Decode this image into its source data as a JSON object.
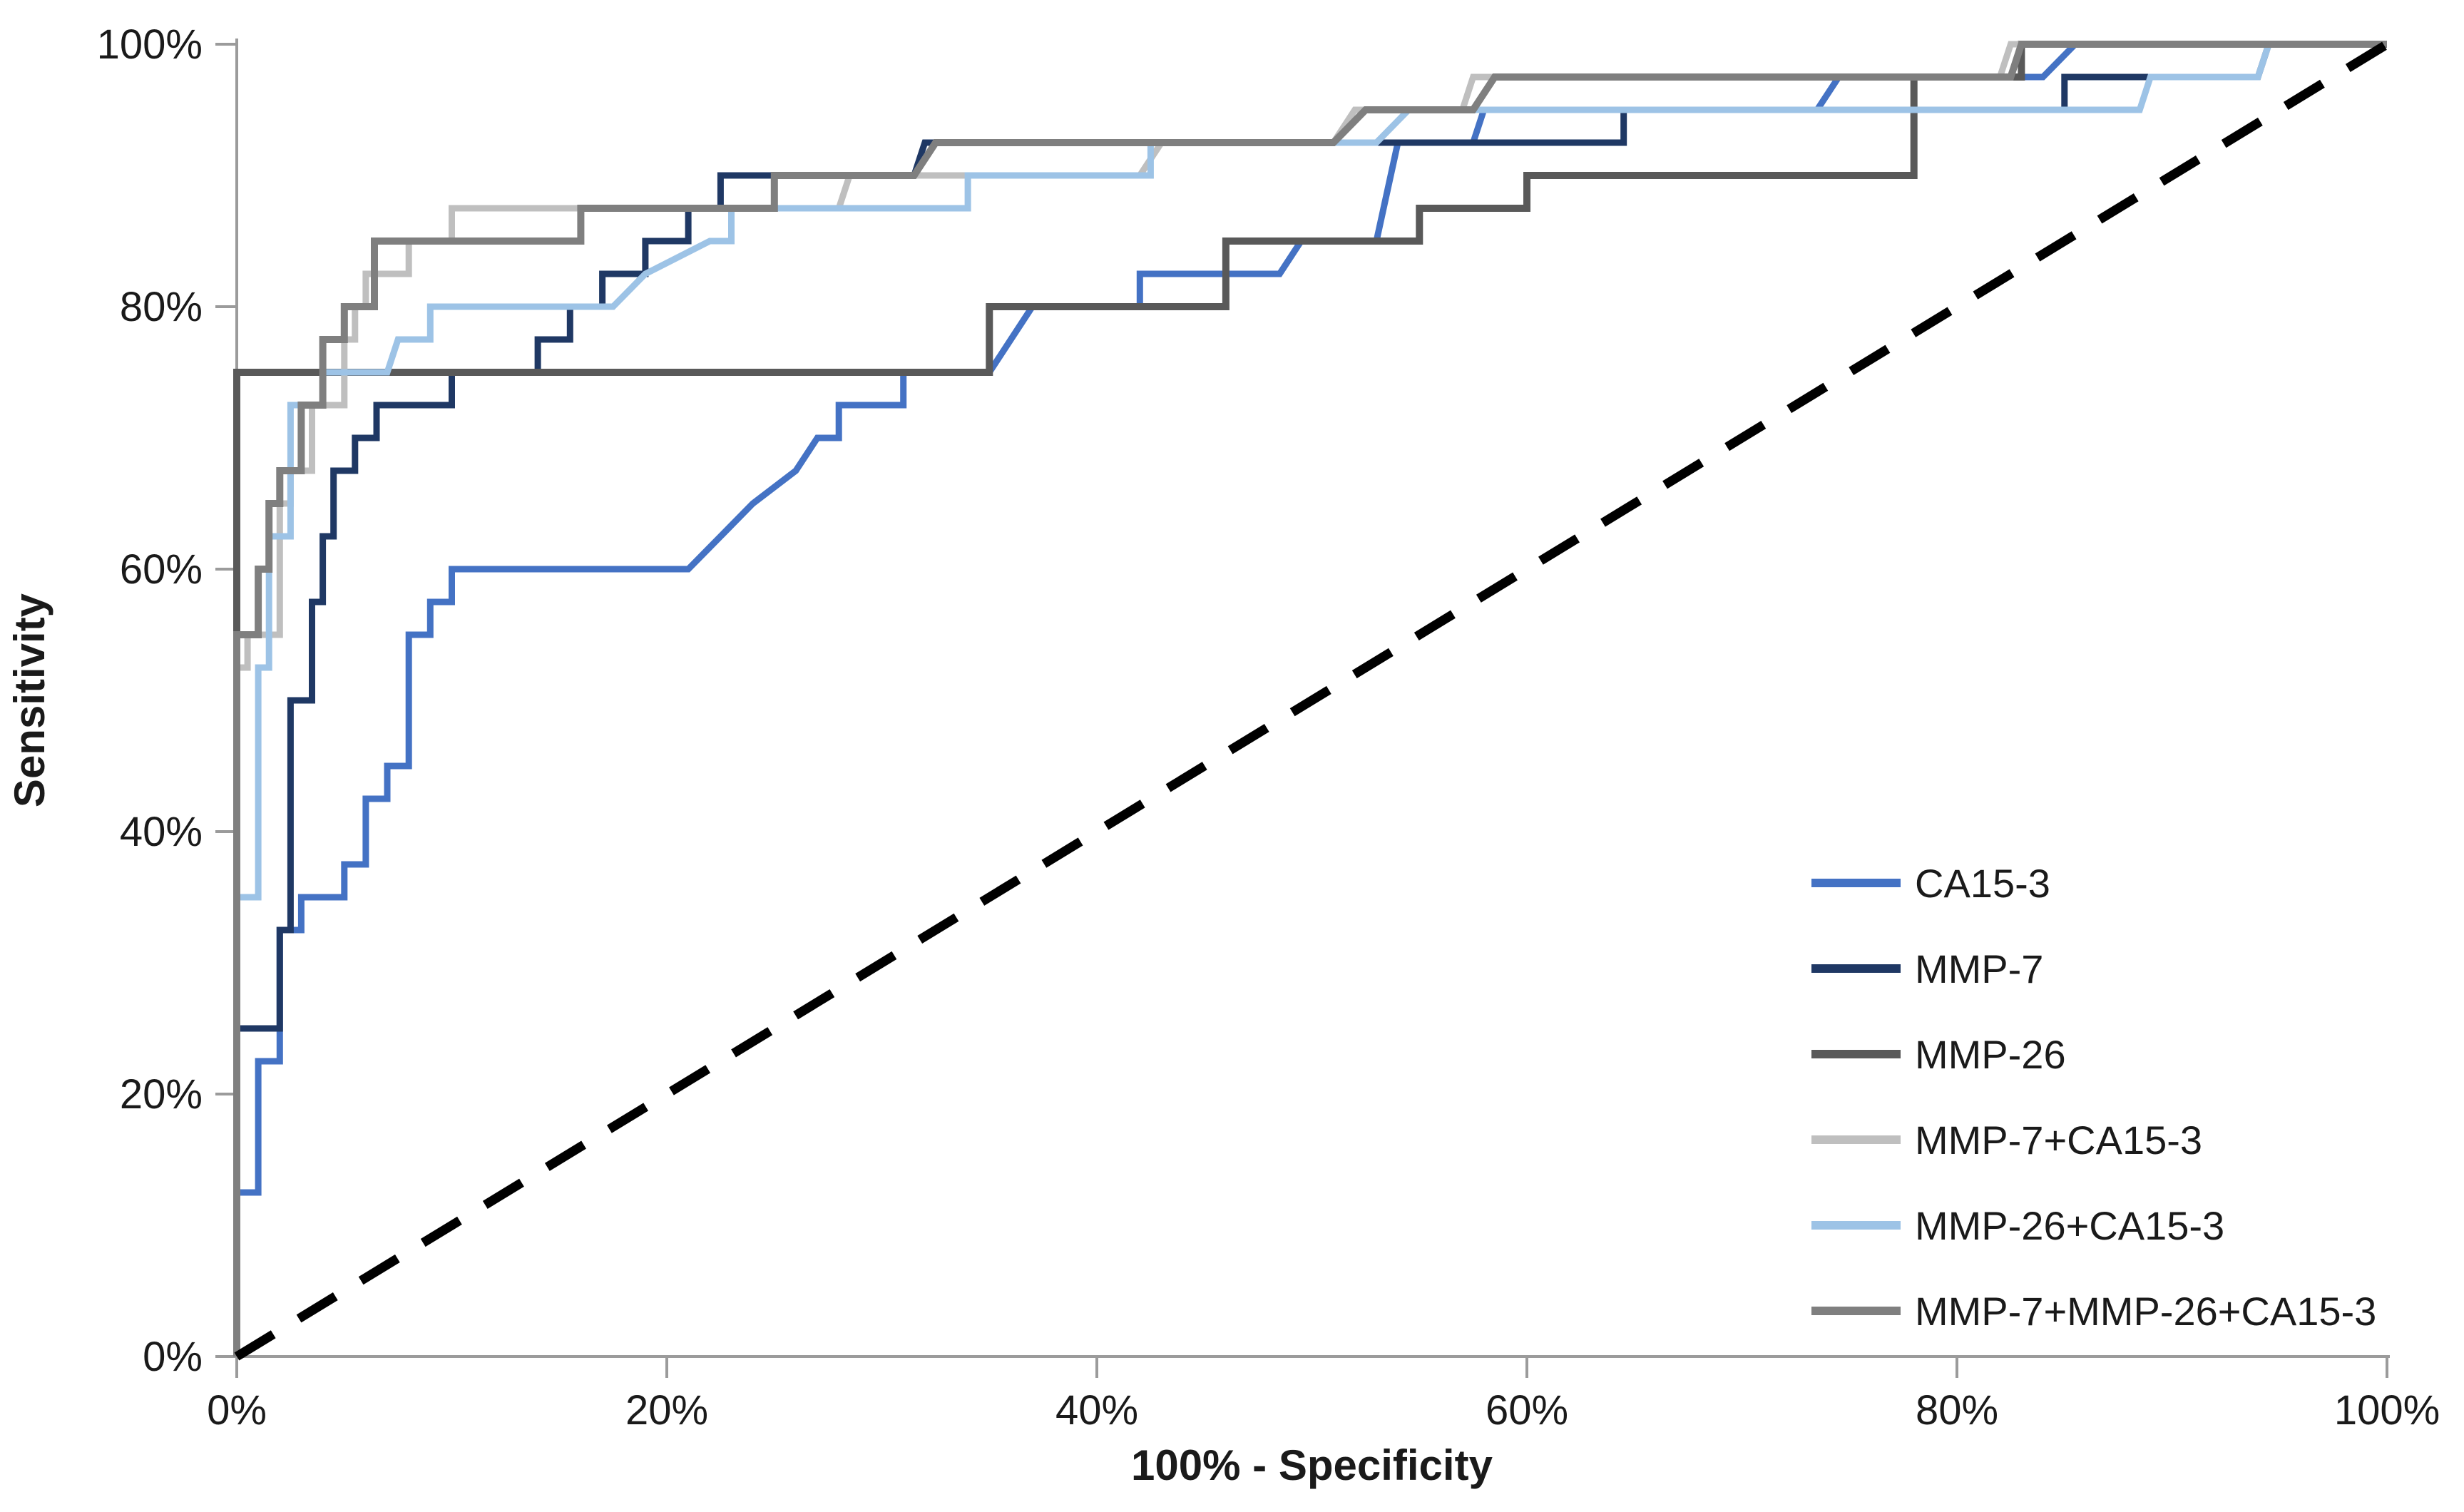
{
  "chart_data": {
    "type": "line",
    "subtype": "roc-step-curves",
    "title": "",
    "xlabel": "100% - Specificity",
    "ylabel": "Sensitivity",
    "xlim": [
      0,
      100
    ],
    "ylim": [
      0,
      100
    ],
    "x_tick_labels": [
      "0%",
      "20%",
      "40%",
      "60%",
      "80%",
      "100%"
    ],
    "y_tick_labels": [
      "0%",
      "20%",
      "40%",
      "60%",
      "80%",
      "100%"
    ],
    "x_tick_values": [
      0,
      20,
      40,
      60,
      80,
      100
    ],
    "y_tick_values": [
      0,
      20,
      40,
      60,
      80,
      100
    ],
    "grid": false,
    "legend_position": "lower-right-inside",
    "background_color": "#ffffff",
    "axis_color": "#9b9b9b",
    "text_color": "#1a1a1a",
    "series": [
      {
        "name": "CA15-3",
        "color": "#4472C4",
        "stroke_width": 9,
        "points": [
          [
            0,
            0
          ],
          [
            0,
            12.5
          ],
          [
            1,
            12.5
          ],
          [
            1,
            22.5
          ],
          [
            2,
            22.5
          ],
          [
            2,
            32.5
          ],
          [
            3,
            32.5
          ],
          [
            3,
            35
          ],
          [
            5,
            35
          ],
          [
            5,
            37.5
          ],
          [
            6,
            37.5
          ],
          [
            6,
            42.5
          ],
          [
            7,
            42.5
          ],
          [
            7,
            45
          ],
          [
            8,
            45
          ],
          [
            8,
            55
          ],
          [
            9,
            55
          ],
          [
            9,
            57.5
          ],
          [
            10,
            57.5
          ],
          [
            10,
            60
          ],
          [
            21,
            60
          ],
          [
            22.5,
            62.5
          ],
          [
            24,
            65
          ],
          [
            26,
            67.5
          ],
          [
            27,
            70
          ],
          [
            28,
            70
          ],
          [
            28,
            72.5
          ],
          [
            31,
            72.5
          ],
          [
            31,
            75
          ],
          [
            35,
            75
          ],
          [
            36,
            77.5
          ],
          [
            37,
            80
          ],
          [
            42,
            80
          ],
          [
            42,
            82.5
          ],
          [
            48.5,
            82.5
          ],
          [
            49.5,
            85
          ],
          [
            53,
            85
          ],
          [
            54,
            92.5
          ],
          [
            57.5,
            92.5
          ],
          [
            58,
            95
          ],
          [
            73.5,
            95
          ],
          [
            74.5,
            97.5
          ],
          [
            84,
            97.5
          ],
          [
            85.5,
            100
          ],
          [
            100,
            100
          ]
        ]
      },
      {
        "name": "MMP-7",
        "color": "#1F3864",
        "stroke_width": 9,
        "points": [
          [
            0,
            0
          ],
          [
            0,
            25
          ],
          [
            2,
            25
          ],
          [
            2,
            32.5
          ],
          [
            2.5,
            32.5
          ],
          [
            2.5,
            50
          ],
          [
            3.5,
            50
          ],
          [
            3.5,
            57.5
          ],
          [
            4,
            57.5
          ],
          [
            4,
            62.5
          ],
          [
            4.5,
            62.5
          ],
          [
            4.5,
            67.5
          ],
          [
            5.5,
            67.5
          ],
          [
            5.5,
            70
          ],
          [
            6.5,
            70
          ],
          [
            6.5,
            72.5
          ],
          [
            10,
            72.5
          ],
          [
            10,
            75
          ],
          [
            14,
            75
          ],
          [
            14,
            77.5
          ],
          [
            15.5,
            77.5
          ],
          [
            15.5,
            80
          ],
          [
            17,
            80
          ],
          [
            17,
            82.5
          ],
          [
            19,
            82.5
          ],
          [
            19,
            85
          ],
          [
            21,
            85
          ],
          [
            21,
            87.5
          ],
          [
            22.5,
            87.5
          ],
          [
            22.5,
            90
          ],
          [
            31.5,
            90
          ],
          [
            32,
            92.5
          ],
          [
            64.5,
            92.5
          ],
          [
            64.5,
            95
          ],
          [
            85,
            95
          ],
          [
            85,
            97.5
          ],
          [
            94,
            97.5
          ],
          [
            94.5,
            100
          ],
          [
            100,
            100
          ]
        ]
      },
      {
        "name": "MMP-26",
        "color": "#595959",
        "stroke_width": 10,
        "points": [
          [
            0,
            0
          ],
          [
            0,
            75
          ],
          [
            35,
            75
          ],
          [
            35,
            80
          ],
          [
            46,
            80
          ],
          [
            46,
            85
          ],
          [
            55,
            85
          ],
          [
            55,
            87.5
          ],
          [
            60,
            87.5
          ],
          [
            60,
            90
          ],
          [
            78,
            90
          ],
          [
            78,
            97.5
          ],
          [
            83,
            97.5
          ],
          [
            83,
            100
          ],
          [
            100,
            100
          ]
        ]
      },
      {
        "name": "MMP-7+CA15-3",
        "color": "#BFBFBF",
        "stroke_width": 9,
        "points": [
          [
            0,
            0
          ],
          [
            0,
            52.5
          ],
          [
            0.5,
            52.5
          ],
          [
            0.5,
            55
          ],
          [
            2,
            55
          ],
          [
            2,
            65
          ],
          [
            2.5,
            65
          ],
          [
            2.5,
            67.5
          ],
          [
            3.5,
            67.5
          ],
          [
            3.5,
            72.5
          ],
          [
            5,
            72.5
          ],
          [
            5,
            77.5
          ],
          [
            5.5,
            77.5
          ],
          [
            5.5,
            80
          ],
          [
            6,
            80
          ],
          [
            6,
            82.5
          ],
          [
            8,
            82.5
          ],
          [
            8,
            85
          ],
          [
            10,
            85
          ],
          [
            10,
            87.5
          ],
          [
            28,
            87.5
          ],
          [
            28.5,
            90
          ],
          [
            42,
            90
          ],
          [
            43,
            92.5
          ],
          [
            51,
            92.5
          ],
          [
            52,
            95
          ],
          [
            57,
            95
          ],
          [
            57.5,
            97.5
          ],
          [
            82,
            97.5
          ],
          [
            82.5,
            100
          ],
          [
            100,
            100
          ]
        ]
      },
      {
        "name": "MMP-26+CA15-3",
        "color": "#9DC3E6",
        "stroke_width": 9,
        "points": [
          [
            0,
            0
          ],
          [
            0,
            35
          ],
          [
            1,
            35
          ],
          [
            1,
            52.5
          ],
          [
            1.5,
            52.5
          ],
          [
            1.5,
            62.5
          ],
          [
            2.5,
            62.5
          ],
          [
            2.5,
            72.5
          ],
          [
            4,
            72.5
          ],
          [
            4,
            75
          ],
          [
            7,
            75
          ],
          [
            7.5,
            77.5
          ],
          [
            9,
            77.5
          ],
          [
            9,
            80
          ],
          [
            17.5,
            80
          ],
          [
            19,
            82.5
          ],
          [
            22,
            85
          ],
          [
            23,
            85
          ],
          [
            23,
            87.5
          ],
          [
            34,
            87.5
          ],
          [
            34,
            90
          ],
          [
            42.5,
            90
          ],
          [
            42.5,
            92.5
          ],
          [
            53,
            92.5
          ],
          [
            54.5,
            95
          ],
          [
            88.5,
            95
          ],
          [
            89,
            97.5
          ],
          [
            94,
            97.5
          ],
          [
            94.5,
            100
          ],
          [
            100,
            100
          ]
        ]
      },
      {
        "name": "MMP-7+MMP-26+CA15-3",
        "color": "#7F7F7F",
        "stroke_width": 10,
        "points": [
          [
            0,
            0
          ],
          [
            0,
            55
          ],
          [
            1,
            55
          ],
          [
            1,
            60
          ],
          [
            1.5,
            60
          ],
          [
            1.5,
            65
          ],
          [
            2,
            65
          ],
          [
            2,
            67.5
          ],
          [
            3,
            67.5
          ],
          [
            3,
            72.5
          ],
          [
            4,
            72.5
          ],
          [
            4,
            77.5
          ],
          [
            5,
            77.5
          ],
          [
            5,
            80
          ],
          [
            6.4,
            80
          ],
          [
            6.4,
            85
          ],
          [
            16,
            85
          ],
          [
            16,
            87.5
          ],
          [
            25,
            87.5
          ],
          [
            25,
            90
          ],
          [
            31.5,
            90
          ],
          [
            32.5,
            92.5
          ],
          [
            51,
            92.5
          ],
          [
            52.5,
            95
          ],
          [
            57.5,
            95
          ],
          [
            58.5,
            97.5
          ],
          [
            82.5,
            97.5
          ],
          [
            83,
            100
          ],
          [
            100,
            100
          ]
        ]
      }
    ],
    "reference_line": {
      "name": "chance-diagonal",
      "color": "#000000",
      "stroke_width": 13,
      "dash": "60 42",
      "points": [
        [
          0,
          0
        ],
        [
          100,
          100
        ]
      ]
    }
  }
}
